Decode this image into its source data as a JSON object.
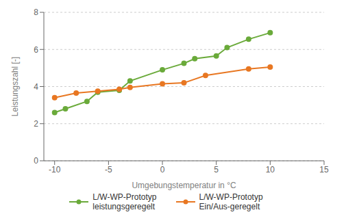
{
  "chart_data": {
    "type": "line",
    "xlabel": "Umgebungstemperatur in °C",
    "ylabel": "Leistungszahl [-]",
    "series": [
      {
        "name": "L/W-WP-Prototyp\nleistungsgeregelt",
        "color": "#6aaa3a",
        "marker": "circle",
        "x": [
          -10,
          -9,
          -7,
          -6,
          -4,
          -3,
          0,
          2,
          3,
          5,
          6,
          8,
          10
        ],
        "values": [
          2.6,
          2.8,
          3.2,
          3.7,
          3.8,
          4.3,
          4.9,
          5.25,
          5.5,
          5.65,
          6.1,
          6.55,
          6.9
        ]
      },
      {
        "name": "L/W-WP-Prototyp\nEin/Aus-geregelt",
        "color": "#e87722",
        "marker": "circle",
        "x": [
          -10,
          -8,
          -6,
          -4,
          -3,
          0,
          2,
          4,
          8,
          10
        ],
        "values": [
          3.4,
          3.65,
          3.75,
          3.85,
          3.95,
          4.15,
          4.2,
          4.6,
          4.95,
          5.05
        ]
      }
    ],
    "xlim": [
      -11,
      15
    ],
    "xticks": [
      -10,
      -5,
      0,
      5,
      10,
      15
    ],
    "ylim": [
      0,
      8
    ],
    "yticks": [
      0,
      2,
      4,
      6,
      8
    ],
    "grid": "y",
    "legend": "bottom"
  }
}
